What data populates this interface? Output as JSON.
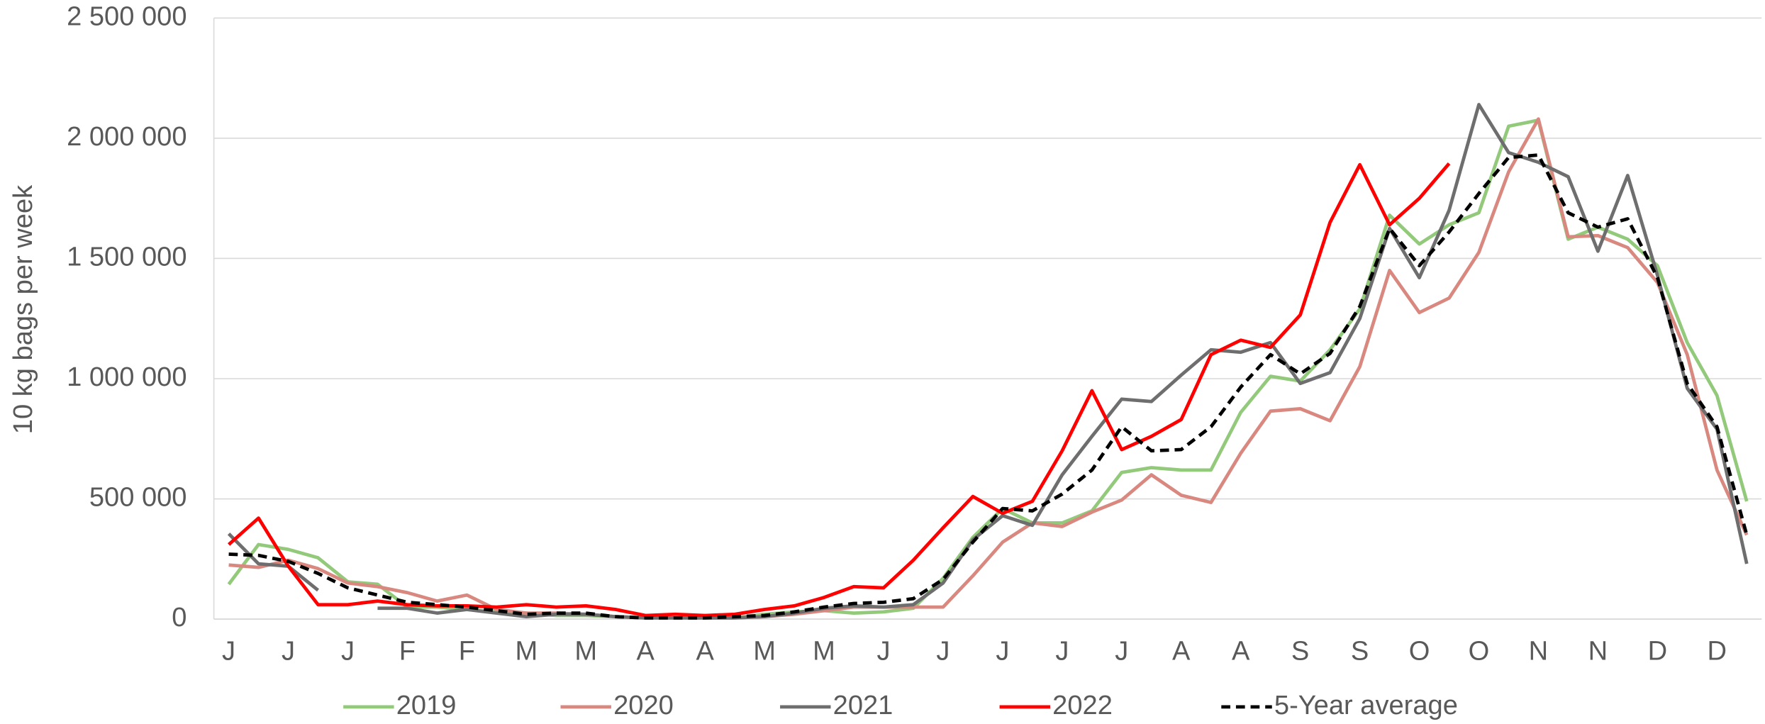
{
  "chart_data": {
    "type": "line",
    "y_label": "10 kg bags per week",
    "categories": [
      "J",
      null,
      "J",
      null,
      "J",
      null,
      "F",
      null,
      "F",
      null,
      "M",
      null,
      "M",
      null,
      "A",
      null,
      "A",
      null,
      "M",
      null,
      "M",
      null,
      "J",
      null,
      "J",
      null,
      "J",
      null,
      "J",
      null,
      "J",
      null,
      "A",
      null,
      "A",
      null,
      "S",
      null,
      "S",
      null,
      "O",
      null,
      "O",
      null,
      "N",
      null,
      "N",
      null,
      "D",
      null,
      "D",
      null
    ],
    "ylim": [
      0,
      2500000
    ],
    "yticks": [
      0,
      {
        "value": 500000,
        "label": "500 000"
      },
      {
        "value": 1000000,
        "label": "1 000 000"
      },
      {
        "value": 1500000,
        "label": "1 500 000"
      },
      {
        "value": 2000000,
        "label": "2 000 000"
      },
      {
        "value": 2500000,
        "label": "2 500 000"
      }
    ],
    "grid": true,
    "legend": "bottom",
    "series": [
      {
        "name": "2019",
        "color": "#92c97a",
        "values": [
          145000,
          310000,
          290000,
          255000,
          155000,
          145000,
          50000,
          50000,
          40000,
          30000,
          25000,
          15000,
          15000,
          10000,
          5000,
          5000,
          5000,
          5000,
          20000,
          30000,
          35000,
          25000,
          30000,
          45000,
          170000,
          340000,
          460000,
          400000,
          400000,
          450000,
          610000,
          630000,
          620000,
          620000,
          860000,
          1010000,
          990000,
          1120000,
          1290000,
          1680000,
          1560000,
          1640000,
          1690000,
          2050000,
          2075000,
          1580000,
          1630000,
          1580000,
          1470000,
          1150000,
          930000,
          490000
        ]
      },
      {
        "name": "2020",
        "color": "#d98880",
        "values": [
          225000,
          215000,
          245000,
          210000,
          150000,
          135000,
          110000,
          75000,
          100000,
          40000,
          25000,
          25000,
          20000,
          10000,
          5000,
          5000,
          5000,
          5000,
          10000,
          20000,
          35000,
          50000,
          50000,
          50000,
          50000,
          180000,
          320000,
          400000,
          385000,
          445000,
          495000,
          600000,
          515000,
          485000,
          690000,
          865000,
          875000,
          825000,
          1050000,
          1450000,
          1275000,
          1335000,
          1525000,
          1860000,
          2080000,
          1590000,
          1595000,
          1545000,
          1400000,
          1100000,
          620000,
          350000
        ]
      },
      {
        "name": "2021",
        "color": "#6e6e6e",
        "values": [
          355000,
          230000,
          220000,
          120000,
          null,
          45000,
          45000,
          25000,
          40000,
          25000,
          10000,
          20000,
          20000,
          10000,
          5000,
          5000,
          5000,
          5000,
          10000,
          25000,
          45000,
          55000,
          50000,
          60000,
          150000,
          330000,
          430000,
          390000,
          600000,
          760000,
          915000,
          905000,
          1015000,
          1120000,
          1110000,
          1150000,
          980000,
          1025000,
          1250000,
          1625000,
          1420000,
          1700000,
          2140000,
          1940000,
          1900000,
          1840000,
          1530000,
          1845000,
          1430000,
          960000,
          790000,
          230000
        ]
      },
      {
        "name": "2022",
        "color": "#ff0000",
        "values": [
          310000,
          420000,
          220000,
          60000,
          60000,
          75000,
          60000,
          55000,
          55000,
          50000,
          60000,
          50000,
          55000,
          40000,
          15000,
          20000,
          15000,
          20000,
          40000,
          55000,
          90000,
          135000,
          130000,
          245000,
          380000,
          510000,
          440000,
          490000,
          700000,
          950000,
          705000,
          760000,
          830000,
          1100000,
          1160000,
          1130000,
          1265000,
          1650000,
          1890000,
          1640000,
          1750000,
          1895000,
          null,
          null,
          null,
          null,
          null,
          null,
          null,
          null,
          null,
          null
        ]
      },
      {
        "name": "5-Year average",
        "color": "#000000",
        "dashed": true,
        "values": [
          270000,
          265000,
          240000,
          190000,
          130000,
          100000,
          70000,
          60000,
          50000,
          35000,
          20000,
          25000,
          25000,
          10000,
          5000,
          5000,
          5000,
          10000,
          15000,
          30000,
          50000,
          65000,
          70000,
          85000,
          165000,
          320000,
          460000,
          450000,
          520000,
          620000,
          800000,
          700000,
          705000,
          800000,
          965000,
          1100000,
          1020000,
          1105000,
          1300000,
          1625000,
          1470000,
          1610000,
          1770000,
          1920000,
          1930000,
          1690000,
          1630000,
          1665000,
          1420000,
          980000,
          800000,
          350000
        ]
      }
    ]
  }
}
